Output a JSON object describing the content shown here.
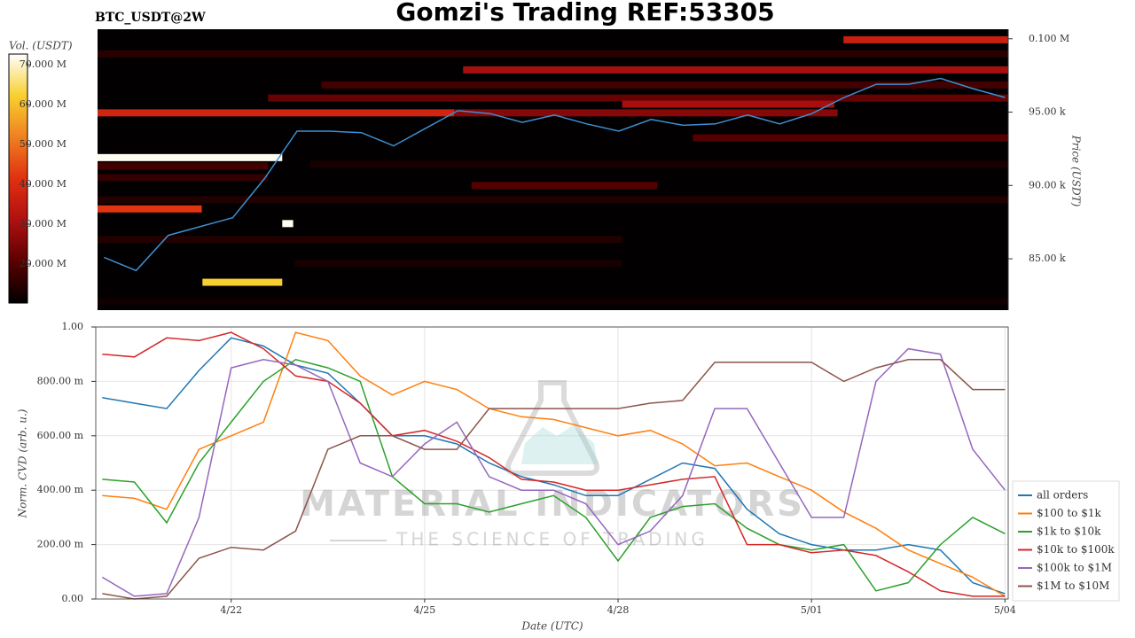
{
  "chart_data": [
    {
      "type": "heatmap",
      "title": "Gomzi's Trading REF:53305",
      "subtitle": "BTC_USDT@2W",
      "ylabel": "Price (USDT)",
      "clabel": "Vol. (USDT)",
      "xlim": [
        -2.1,
        12.05
      ],
      "ylim": [
        81500,
        100650
      ],
      "yticks": [
        {
          "value": 85000,
          "label": "85.00 k"
        },
        {
          "value": 90000,
          "label": "90.00 k"
        },
        {
          "value": 95000,
          "label": "95.00 k"
        },
        {
          "value": 100000,
          "label": "0.100 M"
        }
      ],
      "clim": [
        10200000,
        72700000
      ],
      "cticks": [
        {
          "value": 20000000,
          "label": "20.000 M"
        },
        {
          "value": 30000000,
          "label": "30.000 M"
        },
        {
          "value": 40000000,
          "label": "40.000 M"
        },
        {
          "value": 50000000,
          "label": "50.000 M"
        },
        {
          "value": 60000000,
          "label": "60.000 M"
        },
        {
          "value": 70000000,
          "label": "70.000 M"
        }
      ],
      "colorscale": [
        "#000000",
        "#5a0000",
        "#b01010",
        "#e03010",
        "#f08020",
        "#f8d030",
        "#ffffff"
      ],
      "background": "#020000",
      "cells": [
        {
          "y": 82100,
          "x0": -2.1,
          "x1": 12.05,
          "value": 12000000
        },
        {
          "y": 98970,
          "x0": -2.1,
          "x1": 12.05,
          "value": 15000000
        },
        {
          "y": 89030,
          "x0": -2.1,
          "x1": 12.05,
          "value": 14000000
        },
        {
          "y": 91440,
          "x0": 1.2,
          "x1": 12.05,
          "value": 13000000
        },
        {
          "y": 86320,
          "x0": -2.1,
          "x1": 6.05,
          "value": 14000000
        },
        {
          "y": 84700,
          "x0": 0.96,
          "x1": 6.05,
          "value": 13000000
        },
        {
          "y": 90540,
          "x0": -2.1,
          "x1": 0.55,
          "value": 16000000
        },
        {
          "y": 91320,
          "x0": -2.1,
          "x1": 0.55,
          "value": 18000000
        },
        {
          "y": 96860,
          "x0": 1.38,
          "x1": 12.05,
          "value": 18000000
        },
        {
          "y": 95960,
          "x0": 0.55,
          "x1": 12.05,
          "value": 22000000
        },
        {
          "y": 90000,
          "x0": 3.71,
          "x1": 6.6,
          "value": 20000000
        },
        {
          "y": 93250,
          "x0": 7.15,
          "x1": 12.05,
          "value": 20000000
        },
        {
          "y": 97880,
          "x0": 3.58,
          "x1": 12.05,
          "value": 30000000
        },
        {
          "y": 95540,
          "x0": 6.05,
          "x1": 9.35,
          "value": 30000000
        },
        {
          "y": 94950,
          "x0": 3.44,
          "x1": 9.4,
          "value": 26000000
        },
        {
          "y": 94950,
          "x0": -2.1,
          "x1": 3.44,
          "value": 38000000
        },
        {
          "y": 99930,
          "x0": 9.49,
          "x1": 12.05,
          "value": 36000000
        },
        {
          "y": 88400,
          "x0": -2.1,
          "x1": -0.48,
          "value": 42000000
        },
        {
          "y": 83400,
          "x0": -0.47,
          "x1": 0.77,
          "value": 62000000
        },
        {
          "y": 87400,
          "x0": 0.77,
          "x1": 0.94,
          "value": 72000000
        },
        {
          "y": 91900,
          "x0": -2.1,
          "x1": 0.77,
          "value": 72000000
        }
      ],
      "line": {
        "color": "#3d8fd1",
        "x": [
          -2,
          -1.5,
          -1,
          -0.5,
          0,
          0.5,
          1,
          1.5,
          2,
          2.5,
          3,
          3.5,
          4,
          4.5,
          5,
          5.5,
          6,
          6.5,
          7,
          7.5,
          8,
          8.5,
          9,
          9.5,
          10,
          10.5,
          11,
          11.5,
          12
        ],
        "values": [
          85100,
          84200,
          86600,
          87200,
          87800,
          90500,
          93700,
          93700,
          93600,
          92700,
          93900,
          95100,
          94900,
          94300,
          94800,
          94200,
          93700,
          94500,
          94100,
          94200,
          94800,
          94200,
          94900,
          96000,
          96900,
          96900,
          97300,
          96600,
          96000
        ]
      }
    },
    {
      "type": "line",
      "xlabel": "Date (UTC)",
      "ylabel": "Norm. CVD (arb. u.)",
      "xlim": [
        -2.1,
        12.05
      ],
      "xticks": [
        {
          "value": 0,
          "label": "4/22"
        },
        {
          "value": 3,
          "label": "4/25"
        },
        {
          "value": 6,
          "label": "4/28"
        },
        {
          "value": 9,
          "label": "5/01"
        },
        {
          "value": 12,
          "label": "5/04"
        }
      ],
      "ylim": [
        0,
        1
      ],
      "yticks": [
        {
          "value": 0,
          "label": "0.00"
        },
        {
          "value": 0.2,
          "label": "200.00 m"
        },
        {
          "value": 0.4,
          "label": "400.00 m"
        },
        {
          "value": 0.6,
          "label": "600.00 m"
        },
        {
          "value": 0.8,
          "label": "800.00 m"
        },
        {
          "value": 1,
          "label": "1.00"
        }
      ],
      "grid": true,
      "legend": "lower right",
      "annotations": [
        "MATERIAL INDICATORS",
        "THE SCIENCE OF TRADING"
      ],
      "x": [
        -2,
        -1.5,
        -1,
        -0.5,
        0,
        0.5,
        1,
        1.5,
        2,
        2.5,
        3,
        3.5,
        4,
        4.5,
        5,
        5.5,
        6,
        6.5,
        7,
        7.5,
        8,
        8.5,
        9,
        9.5,
        10,
        10.5,
        11,
        11.5,
        12
      ],
      "series": [
        {
          "name": "all orders",
          "color": "#1f77b4",
          "values": [
            0.74,
            0.72,
            0.7,
            0.84,
            0.96,
            0.93,
            0.86,
            0.83,
            0.72,
            0.6,
            0.6,
            0.57,
            0.5,
            0.45,
            0.42,
            0.38,
            0.38,
            0.44,
            0.5,
            0.48,
            0.33,
            0.24,
            0.2,
            0.18,
            0.18,
            0.2,
            0.18,
            0.06,
            0.02
          ]
        },
        {
          "name": "$100 to $1k",
          "color": "#ff7f0e",
          "values": [
            0.38,
            0.37,
            0.33,
            0.55,
            0.6,
            0.65,
            0.98,
            0.95,
            0.82,
            0.75,
            0.8,
            0.77,
            0.7,
            0.67,
            0.66,
            0.63,
            0.6,
            0.62,
            0.57,
            0.49,
            0.5,
            0.45,
            0.4,
            0.32,
            0.26,
            0.18,
            0.13,
            0.08,
            0.01
          ]
        },
        {
          "name": "$1k to $10k",
          "color": "#2ca02c",
          "values": [
            0.44,
            0.43,
            0.28,
            0.5,
            0.65,
            0.8,
            0.88,
            0.85,
            0.8,
            0.45,
            0.35,
            0.35,
            0.32,
            0.35,
            0.38,
            0.3,
            0.14,
            0.3,
            0.34,
            0.35,
            0.26,
            0.2,
            0.18,
            0.2,
            0.03,
            0.06,
            0.2,
            0.3,
            0.24
          ]
        },
        {
          "name": "$10k to $100k",
          "color": "#d62728",
          "values": [
            0.9,
            0.89,
            0.96,
            0.95,
            0.98,
            0.92,
            0.82,
            0.8,
            0.72,
            0.6,
            0.62,
            0.58,
            0.52,
            0.44,
            0.43,
            0.4,
            0.4,
            0.42,
            0.44,
            0.45,
            0.2,
            0.2,
            0.17,
            0.18,
            0.16,
            0.1,
            0.03,
            0.01,
            0.01
          ]
        },
        {
          "name": "$100k to $1M",
          "color": "#9467bd",
          "values": [
            0.08,
            0.01,
            0.02,
            0.3,
            0.85,
            0.88,
            0.86,
            0.8,
            0.5,
            0.45,
            0.57,
            0.65,
            0.45,
            0.4,
            0.4,
            0.35,
            0.2,
            0.25,
            0.38,
            0.7,
            0.7,
            0.5,
            0.3,
            0.3,
            0.8,
            0.92,
            0.9,
            0.55,
            0.4
          ]
        },
        {
          "name": "$1M to $10M",
          "color": "#8c564b",
          "values": [
            0.02,
            0.0,
            0.01,
            0.15,
            0.19,
            0.18,
            0.25,
            0.55,
            0.6,
            0.6,
            0.55,
            0.55,
            0.7,
            0.7,
            0.7,
            0.7,
            0.7,
            0.72,
            0.73,
            0.87,
            0.87,
            0.87,
            0.87,
            0.8,
            0.85,
            0.88,
            0.88,
            0.77,
            0.77
          ]
        }
      ]
    }
  ]
}
